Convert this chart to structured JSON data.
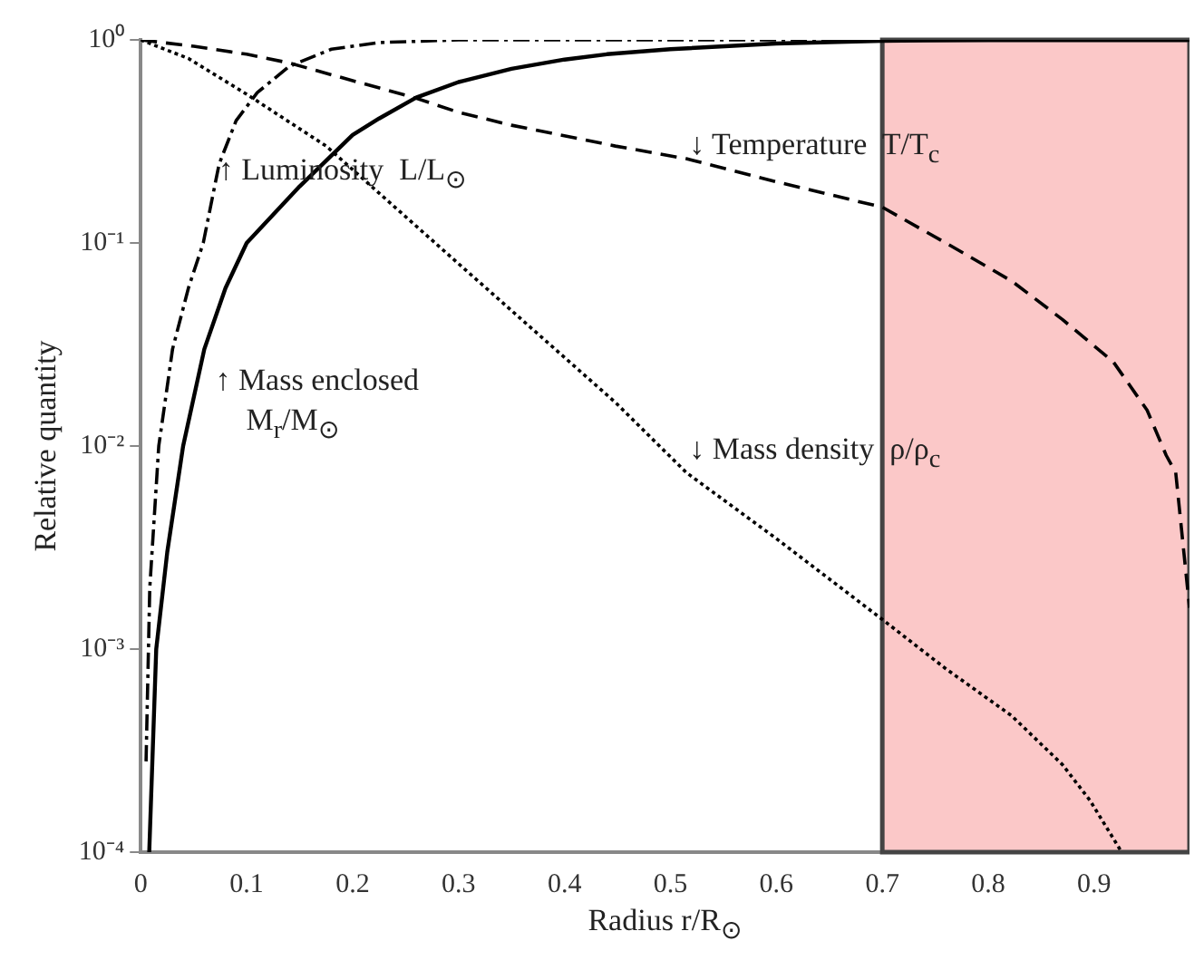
{
  "chart_data": {
    "type": "line",
    "xlabel": "Radius  r/R$_{⊙}$",
    "ylabel": "Relative quantity",
    "log": "y",
    "grid": false,
    "legend": false,
    "marker": "none",
    "xlim": [
      0,
      0.99
    ],
    "xticks": [
      0,
      0.1,
      0.2,
      0.3,
      0.4,
      0.5,
      0.6,
      0.7,
      0.8,
      0.9
    ],
    "ylim": [
      0.0001,
      1
    ],
    "yticks": [
      {
        "value": 1,
        "label": "10⁰"
      },
      {
        "value": 0.1,
        "label": "10⁻¹"
      },
      {
        "value": 0.01,
        "label": "10⁻²"
      },
      {
        "value": 0.001,
        "label": "10⁻³"
      },
      {
        "value": 0.0001,
        "label": "10⁻⁴"
      }
    ],
    "bands": [
      {
        "axis": "x",
        "from": 0.7,
        "to": 0.99,
        "color": "#fbc8c8"
      }
    ],
    "series": [
      {
        "color": "#000000",
        "line_style": "solid",
        "x": [
          0.008,
          0.0146,
          0.025,
          0.04,
          0.06,
          0.08,
          0.1,
          0.15,
          0.2,
          0.225,
          0.26,
          0.3,
          0.35,
          0.4,
          0.44,
          0.5,
          0.6,
          0.7,
          0.8,
          0.99
        ],
        "values": [
          0.0001,
          0.001,
          0.003,
          0.01,
          0.03,
          0.06,
          0.1,
          0.19,
          0.34,
          0.41,
          0.52,
          0.62,
          0.72,
          0.8,
          0.85,
          0.9,
          0.96,
          0.99,
          1,
          1
        ]
      },
      {
        "color": "#000000",
        "line_style": "dashdot",
        "x": [
          0.005,
          0.0085,
          0.017,
          0.03,
          0.045,
          0.059,
          0.074,
          0.09,
          0.11,
          0.14,
          0.18,
          0.225,
          0.3,
          0.99
        ],
        "values": [
          0.00028,
          0.002,
          0.01,
          0.03,
          0.06,
          0.1,
          0.245,
          0.4,
          0.55,
          0.74,
          0.9,
          0.97,
          1,
          1
        ]
      },
      {
        "color": "#000000",
        "line_style": "dashed",
        "x": [
          0,
          0.05,
          0.1,
          0.14,
          0.2,
          0.258,
          0.3,
          0.35,
          0.448,
          0.515,
          0.6,
          0.7,
          0.76,
          0.822,
          0.87,
          0.918,
          0.95,
          0.968,
          0.977,
          0.99
        ],
        "values": [
          1,
          0.93,
          0.85,
          0.77,
          0.63,
          0.52,
          0.44,
          0.38,
          0.3,
          0.26,
          0.2,
          0.15,
          0.1,
          0.065,
          0.042,
          0.026,
          0.015,
          0.009,
          0.0074,
          0.0016
        ]
      },
      {
        "color": "#000000",
        "line_style": "dotted",
        "x": [
          0,
          0.045,
          0.1,
          0.175,
          0.3,
          0.448,
          0.515,
          0.6,
          0.7,
          0.76,
          0.822,
          0.87,
          0.896,
          0.926
        ],
        "values": [
          1,
          0.81,
          0.54,
          0.3,
          0.079,
          0.0164,
          0.0074,
          0.0035,
          0.0014,
          0.0008,
          0.00047,
          0.00027,
          0.00018,
          0.0001
        ]
      }
    ],
    "annotations": [
      "↑ Luminosity  L/L$_{⊙}$",
      "↓ Temperature  T/T$_{c}$",
      "↑ Mass enclosed\n    M$_{r}$/M$_{⊙}$",
      "↓ Mass density  ρ/ρ$_{c}$"
    ]
  }
}
